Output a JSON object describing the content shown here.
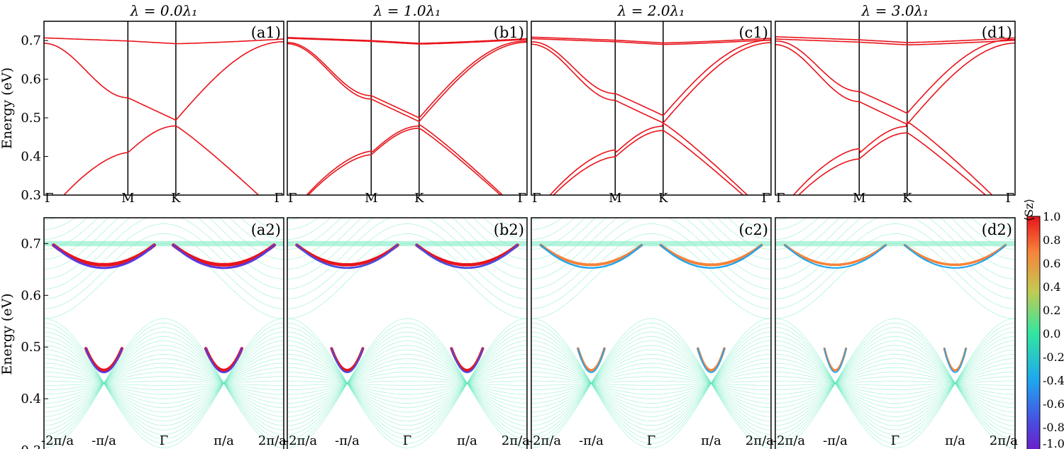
{
  "chart_data": [
    {
      "type": "line",
      "panel": "(a1)",
      "title": "λR = 0.0λ1",
      "ylabel": "Energy (eV)",
      "ylim": [
        0.3,
        0.75
      ],
      "yticks": [
        "0.3",
        "0.4",
        "0.5",
        "0.6",
        "0.7"
      ],
      "xticks": [
        "Γ",
        "M",
        "K",
        "Γ"
      ],
      "lambda_R": 0.0,
      "color": "#e8141b",
      "series": [
        {
          "x": [
            "Γ",
            "M",
            "K",
            "Γ"
          ],
          "values": [
            0.707,
            0.699,
            0.692,
            0.703
          ]
        },
        {
          "x": [
            "Γ",
            "M",
            "K",
            "Γ"
          ],
          "values": [
            0.693,
            0.552,
            0.494,
            0.697
          ]
        },
        {
          "x": [
            "Γ",
            "M",
            "K",
            "Γ"
          ],
          "values": [
            0.24,
            0.41,
            0.479,
            0.24
          ]
        }
      ]
    },
    {
      "type": "line",
      "panel": "(b1)",
      "title": "λR = 1.0λ1",
      "ylim": [
        0.3,
        0.75
      ],
      "xticks": [
        "Γ",
        "M",
        "K",
        "Γ"
      ],
      "lambda_R": 1.0
    },
    {
      "type": "line",
      "panel": "(c1)",
      "title": "λR = 2.0λ1",
      "ylim": [
        0.3,
        0.75
      ],
      "xticks": [
        "Γ",
        "M",
        "K",
        "Γ"
      ],
      "lambda_R": 2.0
    },
    {
      "type": "line",
      "panel": "(d1)",
      "title": "λR = 3.0λ1",
      "ylim": [
        0.3,
        0.75
      ],
      "xticks": [
        "Γ",
        "M",
        "K",
        "Γ"
      ],
      "lambda_R": 3.0
    },
    {
      "type": "line",
      "panel": "(a2)",
      "ylabel": "Energy (eV)",
      "ylim": [
        0.3,
        0.75
      ],
      "yticks": [
        "0.3",
        "0.4",
        "0.5",
        "0.6",
        "0.7"
      ],
      "xticks": [
        "-2π/a",
        "-π/a",
        "Γ",
        "π/a",
        "2π/a"
      ],
      "lambda_R": 0.0,
      "edge_states": {
        "upper_min": 0.655,
        "upper_max": 0.697,
        "lower_min": 0.452
      }
    },
    {
      "type": "line",
      "panel": "(b2)",
      "ylim": [
        0.3,
        0.75
      ],
      "xticks": [
        "-2π/a",
        "-π/a",
        "Γ",
        "π/a",
        "2π/a"
      ],
      "lambda_R": 1.0
    },
    {
      "type": "line",
      "panel": "(c2)",
      "ylim": [
        0.3,
        0.75
      ],
      "xticks": [
        "-2π/a",
        "-π/a",
        "Γ",
        "π/a",
        "2π/a"
      ],
      "lambda_R": 2.0
    },
    {
      "type": "line",
      "panel": "(d2)",
      "ylim": [
        0.3,
        0.75
      ],
      "xticks": [
        "-2π/a",
        "-π/a",
        "Γ",
        "π/a",
        "2π/a"
      ],
      "lambda_R": 3.0
    }
  ],
  "colorbar": {
    "label": "⟨Sz⟩",
    "ticks": [
      "1.0",
      "0.8",
      "0.6",
      "0.4",
      "0.2",
      "0.0",
      "-0.2",
      "-0.4",
      "-0.6",
      "-0.8",
      "-1.0"
    ],
    "colors": [
      "#e8141b",
      "#f7823a",
      "#c2cb52",
      "#32e6a0",
      "#1fa6f0",
      "#5a3ae0",
      "#6a1ec8"
    ]
  }
}
